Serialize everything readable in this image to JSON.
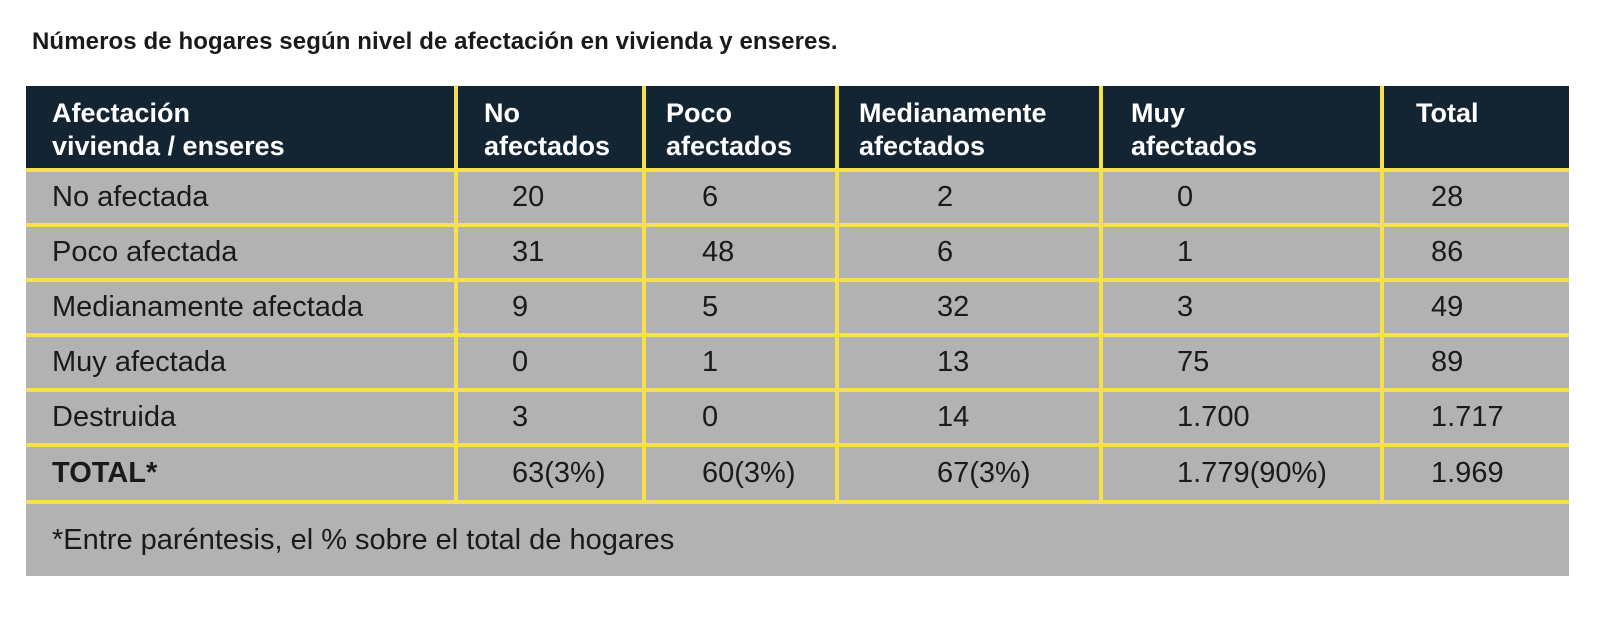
{
  "title": "Números de hogares según nivel de afectación en vivienda y enseres.",
  "table": {
    "headers": [
      "Afectación\nvivienda / enseres",
      "No\nafectados",
      "Poco\nafectados",
      "Medianamente\nafectados",
      "Muy\nafectados",
      "Total"
    ],
    "rows": [
      [
        "No afectada",
        "20",
        "6",
        "2",
        "0",
        "28"
      ],
      [
        "Poco afectada",
        "31",
        "48",
        "6",
        "1",
        "86"
      ],
      [
        "Medianamente afectada",
        "9",
        "5",
        "32",
        "3",
        "49"
      ],
      [
        "Muy afectada",
        "0",
        "1",
        "13",
        "75",
        "89"
      ],
      [
        "Destruida",
        "3",
        "0",
        "14",
        "1.700",
        "1.717"
      ]
    ],
    "total": [
      "TOTAL*",
      "63(3%)",
      "60(3%)",
      "67(3%)",
      "1.779(90%)",
      "1.969"
    ],
    "note": "*Entre paréntesis, el % sobre el total de hogares"
  },
  "colors": {
    "header_bg": "#132433",
    "body_bg": "#b2b2b2",
    "grid_lines": "#f6e04b"
  }
}
